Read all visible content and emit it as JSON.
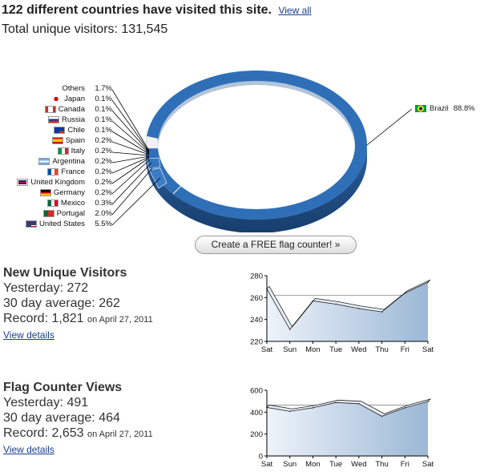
{
  "header": {
    "title": "122 different countries have visited this site.",
    "view_all": "View all",
    "total": "Total unique visitors: 131,545"
  },
  "donut": {
    "legend": [
      {
        "name": "Others",
        "pct": "1.7%",
        "flag": "none"
      },
      {
        "name": "Japan",
        "pct": "0.1%",
        "flag": "jp"
      },
      {
        "name": "Canada",
        "pct": "0.1%",
        "flag": "ca"
      },
      {
        "name": "Russia",
        "pct": "0.1%",
        "flag": "ru"
      },
      {
        "name": "Chile",
        "pct": "0.1%",
        "flag": "cl"
      },
      {
        "name": "Spain",
        "pct": "0.2%",
        "flag": "es"
      },
      {
        "name": "Italy",
        "pct": "0.2%",
        "flag": "it"
      },
      {
        "name": "Argentina",
        "pct": "0.2%",
        "flag": "ar"
      },
      {
        "name": "France",
        "pct": "0.2%",
        "flag": "fr"
      },
      {
        "name": "United Kingdom",
        "pct": "0.2%",
        "flag": "gb"
      },
      {
        "name": "Germany",
        "pct": "0.2%",
        "flag": "de"
      },
      {
        "name": "Mexico",
        "pct": "0.3%",
        "flag": "mx"
      },
      {
        "name": "Portugal",
        "pct": "2.0%",
        "flag": "pt"
      },
      {
        "name": "United States",
        "pct": "5.5%",
        "flag": "us"
      }
    ],
    "main": {
      "name": "Brazil",
      "pct": "88.8%",
      "flag": "br"
    }
  },
  "cta_label": "Create a FREE flag counter! »",
  "colors": {
    "ring": "#2f6fb8",
    "ring_dark": "#1d4e88",
    "area_light": "#eef3fa",
    "area_dark": "#9bb8d6",
    "link": "#1a3d8f"
  },
  "stats": {
    "visitors": {
      "title": "New Unique Visitors",
      "yesterday": "Yesterday: 272",
      "average": "30 day average: 262",
      "record": "Record: 1,821",
      "record_date": "on April 27, 2011",
      "link": "View details"
    },
    "views": {
      "title": "Flag Counter Views",
      "yesterday": "Yesterday: 491",
      "average": "30 day average: 464",
      "record": "Record: 2,653",
      "record_date": "on April 27, 2011",
      "link": "View details"
    }
  },
  "chart_data": [
    {
      "type": "area",
      "categories": [
        "Sat",
        "Sun",
        "Mon",
        "Tue",
        "Wed",
        "Thu",
        "Fri",
        "Sat"
      ],
      "values": [
        268,
        231,
        257,
        254,
        250,
        247,
        264,
        274
      ],
      "ylim": [
        220,
        280
      ],
      "yticks": [
        "220",
        "240",
        "260",
        "280"
      ],
      "average": 262,
      "grid": false
    },
    {
      "type": "area",
      "categories": [
        "Sat",
        "Sun",
        "Mon",
        "Tue",
        "Wed",
        "Thu",
        "Fri",
        "Sat"
      ],
      "values": [
        443,
        408,
        440,
        488,
        477,
        363,
        440,
        497
      ],
      "ylim": [
        0,
        600
      ],
      "yticks": [
        "0",
        "200",
        "400",
        "600"
      ],
      "average": 464,
      "grid": false
    }
  ]
}
